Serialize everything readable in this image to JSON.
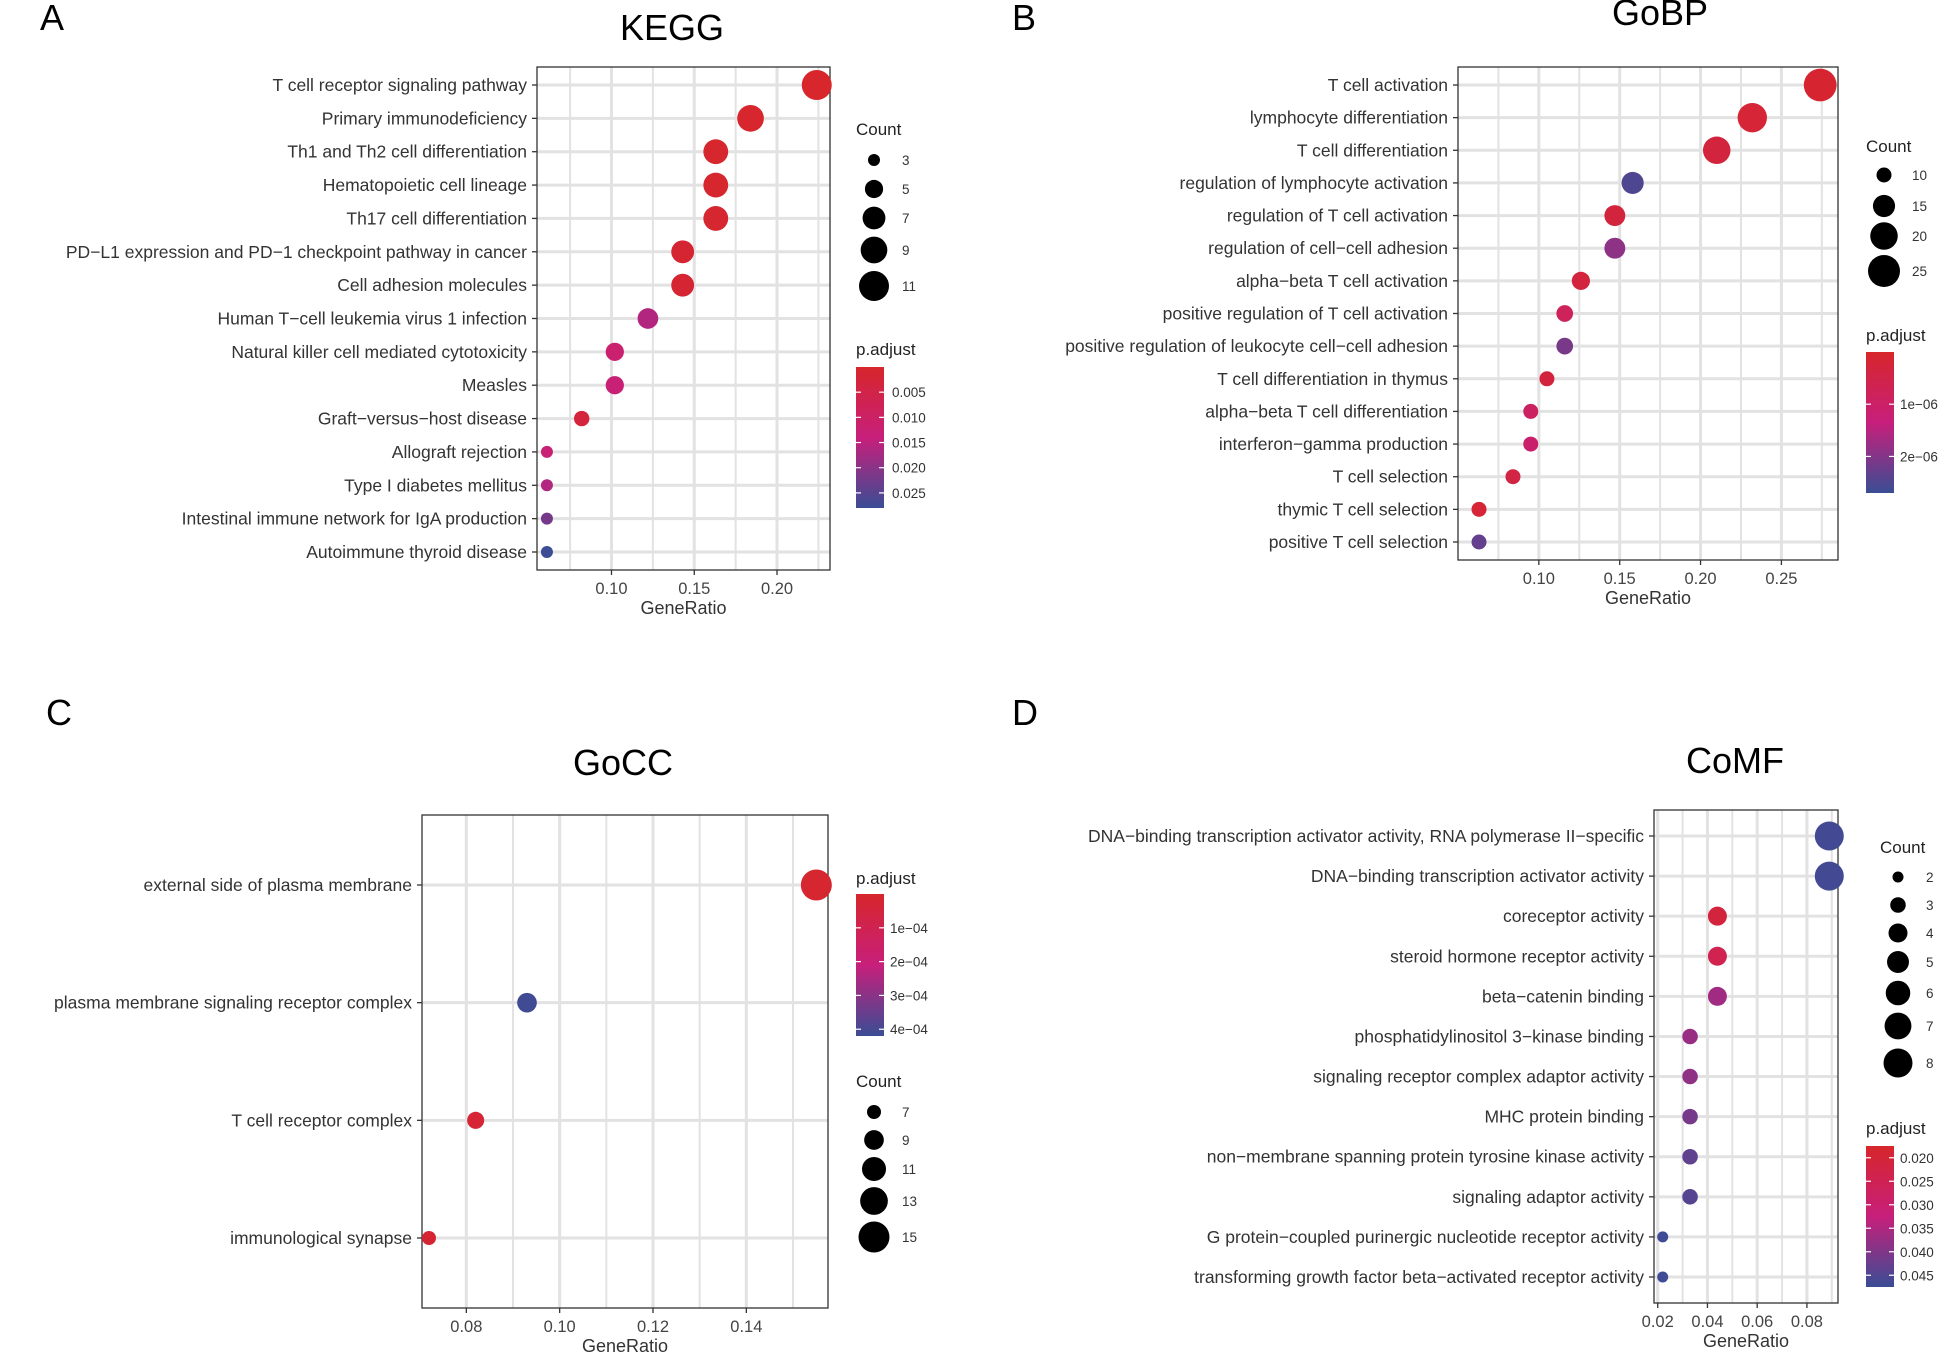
{
  "chart_data": [
    {
      "panel": "A",
      "title": "KEGG",
      "type": "scatter",
      "xlabel": "GeneRatio",
      "ylabel": "",
      "xlim": [
        0.055,
        0.232
      ],
      "xticks": [
        0.1,
        0.15,
        0.2
      ],
      "xtick_labels": [
        "0.10",
        "0.15",
        "0.20"
      ],
      "grid": true,
      "categories": [
        "T cell receptor signaling pathway",
        "Primary immunodeficiency",
        "Th1 and Th2 cell differentiation",
        "Hematopoietic cell lineage",
        "Th17 cell differentiation",
        "PD−L1 expression and PD−1 checkpoint pathway in cancer",
        "Cell adhesion molecules",
        "Human T−cell leukemia virus 1 infection",
        "Natural killer cell mediated cytotoxicity",
        "Measles",
        "Graft−versus−host disease",
        "Allograft rejection",
        "Type I diabetes mellitus",
        "Intestinal immune network for IgA production",
        "Autoimmune thyroid disease"
      ],
      "gene_ratio": [
        0.224,
        0.184,
        0.163,
        0.163,
        0.163,
        0.143,
        0.143,
        0.122,
        0.102,
        0.102,
        0.082,
        0.061,
        0.061,
        0.061,
        0.061
      ],
      "count": [
        11,
        9,
        8,
        8,
        8,
        7,
        7,
        6,
        5,
        5,
        4,
        3,
        3,
        3,
        3
      ],
      "p_adjust": [
        0.0001,
        0.0003,
        0.0005,
        0.0006,
        0.0008,
        0.0012,
        0.0014,
        0.016,
        0.012,
        0.013,
        0.003,
        0.013,
        0.016,
        0.022,
        0.028
      ],
      "size_legend": {
        "title": "Count",
        "values": [
          3,
          5,
          7,
          9,
          11
        ],
        "labels": [
          "3",
          "5",
          "7",
          "9",
          "11"
        ]
      },
      "color_legend": {
        "title": "p.adjust",
        "range": [
          0.0,
          0.028
        ],
        "ticks": [
          0.005,
          0.01,
          0.015,
          0.02,
          0.025
        ],
        "labels": [
          "0.005",
          "0.010",
          "0.015",
          "0.020",
          "0.025"
        ]
      },
      "legend_position": "right"
    },
    {
      "panel": "B",
      "title": "GoBP",
      "type": "scatter",
      "xlabel": "GeneRatio",
      "ylabel": "",
      "xlim": [
        0.05,
        0.285
      ],
      "xticks": [
        0.1,
        0.15,
        0.2,
        0.25
      ],
      "xtick_labels": [
        "0.10",
        "0.15",
        "0.20",
        "0.25"
      ],
      "grid": true,
      "categories": [
        "T cell activation",
        "lymphocyte differentiation",
        "T cell differentiation",
        "regulation of lymphocyte activation",
        "regulation of T cell activation",
        "regulation of cell−cell adhesion",
        "alpha−beta T cell activation",
        "positive regulation of T cell activation",
        "positive regulation of leukocyte cell−cell adhesion",
        "T cell differentiation in thymus",
        "alpha−beta T cell differentiation",
        "interferon−gamma production",
        "T cell selection",
        "thymic T cell selection",
        "positive T cell selection"
      ],
      "gene_ratio": [
        0.274,
        0.232,
        0.21,
        0.158,
        0.147,
        0.147,
        0.126,
        0.116,
        0.116,
        0.105,
        0.095,
        0.095,
        0.084,
        0.063,
        0.063
      ],
      "count": [
        26,
        22,
        20,
        15,
        14,
        14,
        12,
        11,
        11,
        10,
        9,
        9,
        8,
        6,
        6
      ],
      "p_adjust": [
        1e-07,
        2e-07,
        3e-07,
        2.5e-06,
        3e-07,
        1.9e-06,
        3e-07,
        8e-07,
        2.1e-06,
        3e-07,
        9e-07,
        1.1e-06,
        4e-07,
        2e-07,
        2.3e-06
      ],
      "size_legend": {
        "title": "Count",
        "values": [
          10,
          15,
          20,
          25
        ],
        "labels": [
          "10",
          "15",
          "20",
          "25"
        ]
      },
      "color_legend": {
        "title": "p.adjust",
        "range": [
          0.0,
          2.7e-06
        ],
        "ticks": [
          1e-06,
          2e-06
        ],
        "labels": [
          "1e−06",
          "2e−06"
        ]
      },
      "legend_position": "right"
    },
    {
      "panel": "C",
      "title": "GoCC",
      "type": "scatter",
      "xlabel": "GeneRatio",
      "ylabel": "",
      "xlim": [
        0.0705,
        0.1575
      ],
      "xticks": [
        0.08,
        0.1,
        0.12,
        0.14
      ],
      "xtick_labels": [
        "0.08",
        "0.10",
        "0.12",
        "0.14"
      ],
      "grid": true,
      "categories": [
        "external side of plasma membrane",
        "plasma membrane signaling receptor complex",
        "T cell receptor complex",
        "immunological synapse"
      ],
      "gene_ratio": [
        0.155,
        0.093,
        0.082,
        0.072
      ],
      "count": [
        15,
        9,
        8,
        7
      ],
      "p_adjust": [
        1e-05,
        0.00041,
        3e-05,
        2e-05
      ],
      "size_legend": {
        "title": "Count",
        "values": [
          7,
          9,
          11,
          13,
          15
        ],
        "labels": [
          "7",
          "9",
          "11",
          "13",
          "15"
        ]
      },
      "color_legend": {
        "title": "p.adjust",
        "range": [
          0.0,
          0.00042
        ],
        "ticks": [
          0.0001,
          0.0002,
          0.0003,
          0.0004
        ],
        "labels": [
          "1e−04",
          "2e−04",
          "3e−04",
          "4e−04"
        ]
      },
      "legend_position": "right"
    },
    {
      "panel": "D",
      "title": "CoMF",
      "type": "scatter",
      "xlabel": "GeneRatio",
      "ylabel": "",
      "xlim": [
        0.0185,
        0.0925
      ],
      "xticks": [
        0.02,
        0.04,
        0.06,
        0.08
      ],
      "xtick_labels": [
        "0.02",
        "0.04",
        "0.06",
        "0.08"
      ],
      "grid": true,
      "categories": [
        "DNA−binding transcription activator activity, RNA polymerase II−specific",
        "DNA−binding transcription activator activity",
        "coreceptor activity",
        "steroid hormone receptor activity",
        "beta−catenin binding",
        "phosphatidylinositol 3−kinase binding",
        "signaling receptor complex adaptor activity",
        "MHC protein binding",
        "non−membrane spanning protein tyrosine kinase activity",
        "signaling adaptor activity",
        "G protein−coupled purinergic nucleotide receptor activity",
        "transforming growth factor beta−activated receptor activity"
      ],
      "gene_ratio": [
        0.089,
        0.089,
        0.044,
        0.044,
        0.044,
        0.033,
        0.033,
        0.033,
        0.033,
        0.033,
        0.022,
        0.022
      ],
      "count": [
        8,
        8,
        4,
        4,
        4,
        3,
        3,
        3,
        3,
        3,
        2,
        2
      ],
      "p_adjust": [
        0.0465,
        0.0465,
        0.021,
        0.0245,
        0.0365,
        0.0375,
        0.0385,
        0.041,
        0.0435,
        0.0445,
        0.047,
        0.047
      ],
      "size_legend": {
        "title": "Count",
        "values": [
          2,
          3,
          4,
          5,
          6,
          7,
          8
        ],
        "labels": [
          "2",
          "3",
          "4",
          "5",
          "6",
          "7",
          "8"
        ]
      },
      "color_legend": {
        "title": "p.adjust",
        "range": [
          0.0175,
          0.0475
        ],
        "ticks": [
          0.02,
          0.025,
          0.03,
          0.035,
          0.04,
          0.045
        ],
        "labels": [
          "0.020",
          "0.025",
          "0.030",
          "0.035",
          "0.040",
          "0.045"
        ]
      },
      "legend_position": "right"
    }
  ],
  "colors": {
    "low_p": "#d7262b",
    "mid_p": "#c71f7b",
    "high_p": "#3a4d95",
    "dot_size_legend": "#000000",
    "panel_border": "#333333",
    "grid": "#e2e2e2"
  }
}
